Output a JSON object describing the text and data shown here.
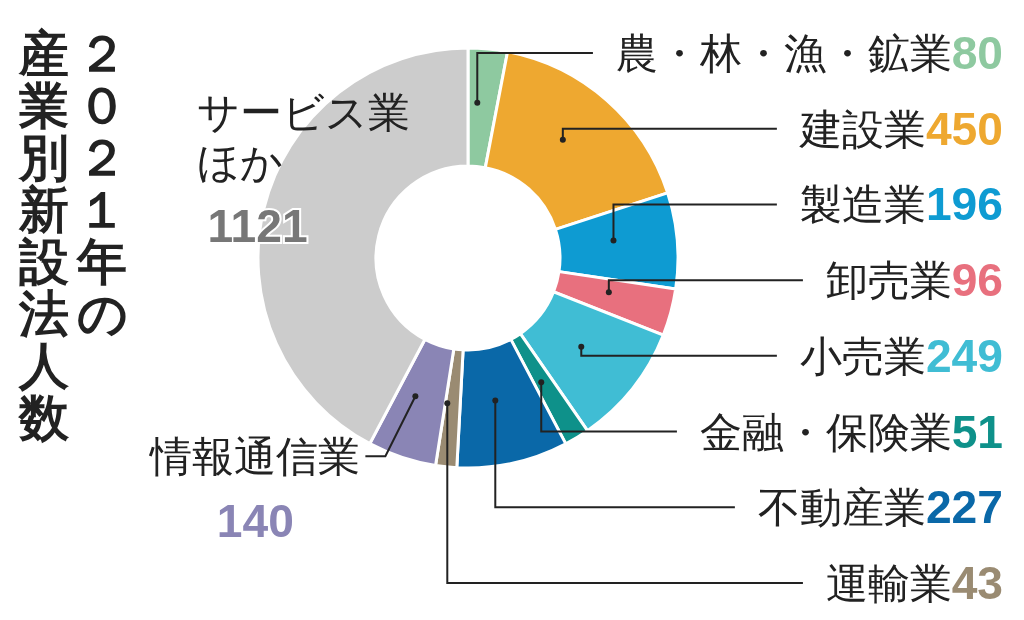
{
  "chart_data": {
    "type": "donut",
    "title": "２０２１年の",
    "subtitle": "産業別新設法人数",
    "categories": [
      "農・林・漁・鉱業",
      "建設業",
      "製造業",
      "卸売業",
      "小売業",
      "金融・保険業",
      "不動産業",
      "運輸業",
      "情報通信業",
      "サービス業ほか"
    ],
    "values": [
      80,
      450,
      196,
      96,
      249,
      51,
      227,
      43,
      140,
      1121
    ],
    "colors": [
      "#8ec9a0",
      "#eea830",
      "#0e9bd2",
      "#e8707e",
      "#40bdd4",
      "#0e918a",
      "#0a68a8",
      "#9a8b72",
      "#8a85b5",
      "#cccccc"
    ],
    "data_labels": true
  }
}
